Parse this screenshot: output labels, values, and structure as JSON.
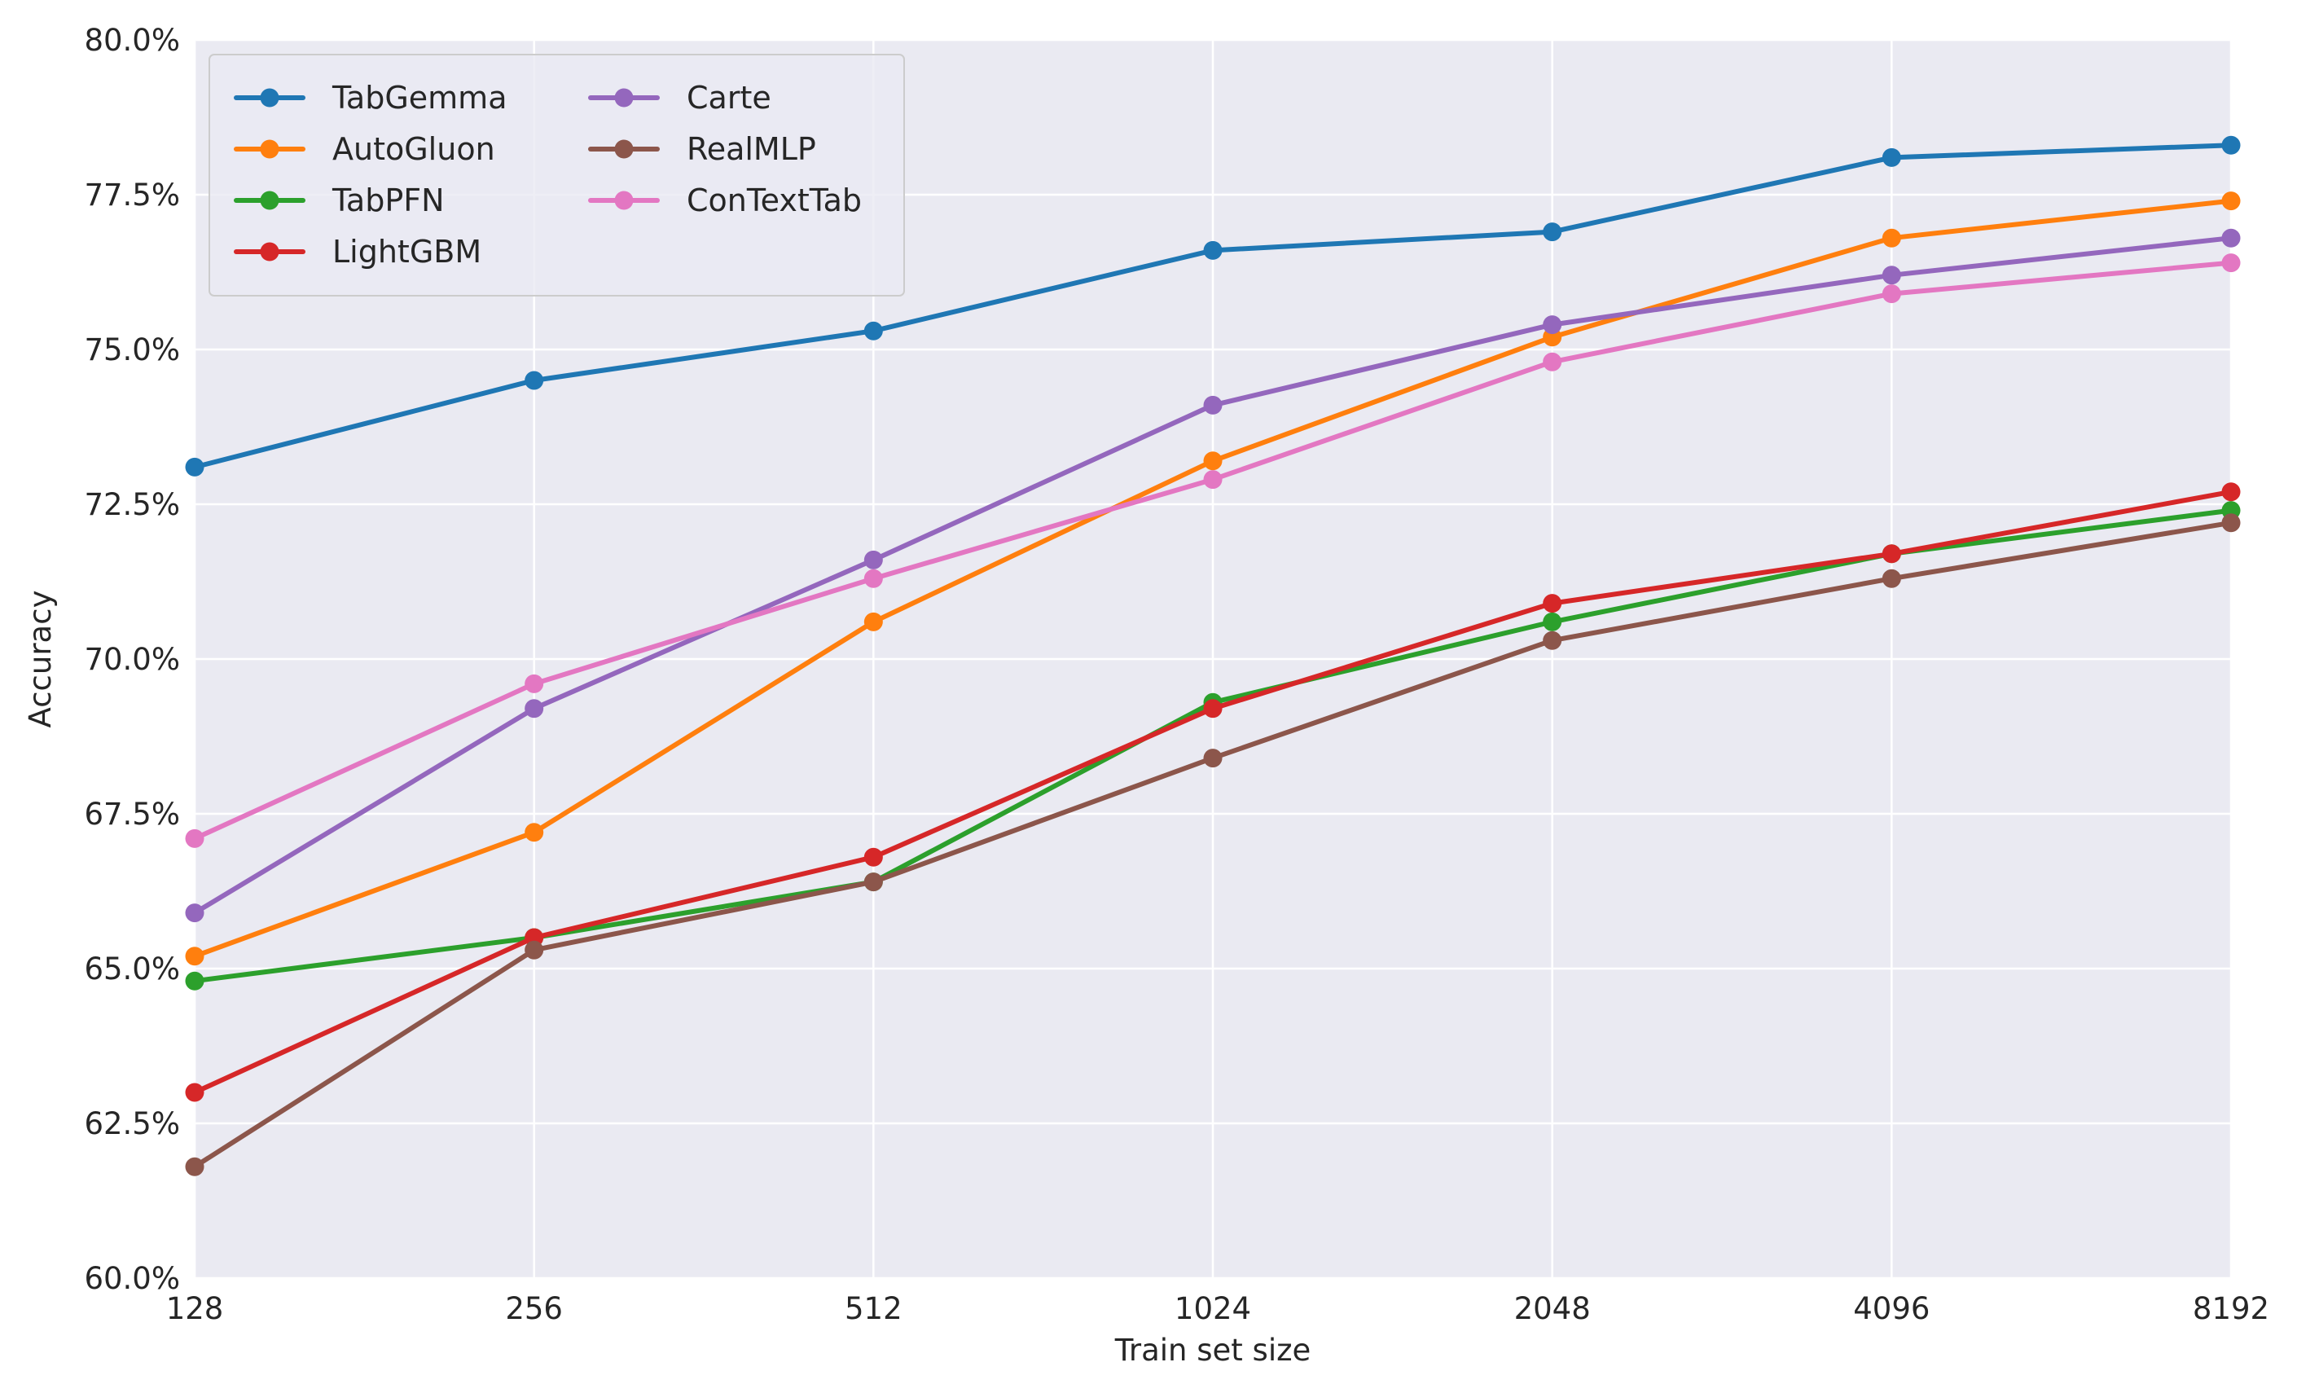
{
  "chart_data": {
    "type": "line",
    "title": "",
    "xlabel": "Train set size",
    "ylabel": "Accuracy",
    "categories": [
      "128",
      "256",
      "512",
      "1024",
      "2048",
      "4096",
      "8192"
    ],
    "ylim": [
      60.0,
      80.0
    ],
    "yticks": [
      "60.0%",
      "62.5%",
      "65.0%",
      "67.5%",
      "70.0%",
      "72.5%",
      "75.0%",
      "77.5%",
      "80.0%"
    ],
    "grid": true,
    "legend_position": "top-left",
    "series": [
      {
        "name": "TabGemma",
        "color": "#1f77b4",
        "values": [
          73.1,
          74.5,
          75.3,
          76.6,
          76.9,
          78.1,
          78.3
        ]
      },
      {
        "name": "AutoGluon",
        "color": "#ff7f0e",
        "values": [
          65.2,
          67.2,
          70.6,
          73.2,
          75.2,
          76.8,
          77.4
        ]
      },
      {
        "name": "TabPFN",
        "color": "#2ca02c",
        "values": [
          64.8,
          65.5,
          66.4,
          69.3,
          70.6,
          71.7,
          72.4
        ]
      },
      {
        "name": "LightGBM",
        "color": "#d62728",
        "values": [
          63.0,
          65.5,
          66.8,
          69.2,
          70.9,
          71.7,
          72.7
        ]
      },
      {
        "name": "Carte",
        "color": "#9467bd",
        "values": [
          65.9,
          69.2,
          71.6,
          74.1,
          75.4,
          76.2,
          76.8
        ]
      },
      {
        "name": "RealMLP",
        "color": "#8c564b",
        "values": [
          61.8,
          65.3,
          66.4,
          68.4,
          70.3,
          71.3,
          72.2
        ]
      },
      {
        "name": "ConTextTab",
        "color": "#e377c2",
        "values": [
          67.1,
          69.6,
          71.3,
          72.9,
          74.8,
          75.9,
          76.4
        ]
      }
    ]
  }
}
